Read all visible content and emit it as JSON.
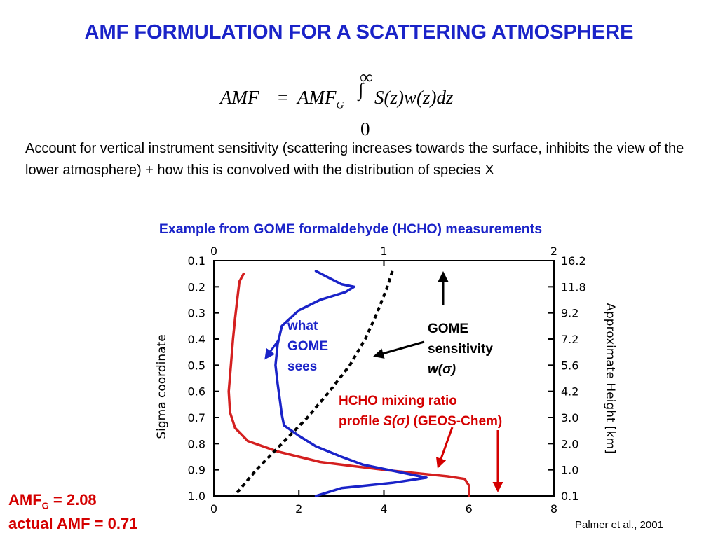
{
  "slide": {
    "title": "AMF FORMULATION FOR A SCATTERING ATMOSPHERE",
    "equation": {
      "lhs": "AMF",
      "equals": "=",
      "amf_g": "AMF",
      "amf_g_subscript": "G",
      "integral_sign": "∫",
      "upper_limit": "∞",
      "lower_limit": "0",
      "integrand": "S(z)w(z)dz"
    },
    "description": "Account for vertical instrument sensitivity (scattering increases towards the surface, inhibits the view of the lower atmosphere) + how this is convolved with the distribution of species X",
    "subtitle": "Example from GOME formaldehyde (HCHO) measurements",
    "result": {
      "amfg_label": "AMF",
      "amfg_subscript": "G",
      "amfg_value": " = 2.08",
      "actual_amf": "actual AMF = 0.71"
    },
    "citation": "Palmer et al., 2001"
  },
  "chart_data": {
    "type": "line",
    "left_axis": {
      "label": "Sigma coordinate",
      "ticks": [
        "0.1",
        "0.2",
        "0.3",
        "0.4",
        "0.5",
        "0.6",
        "0.7",
        "0.8",
        "0.9",
        "1.0"
      ],
      "range": [
        0.1,
        1.0
      ]
    },
    "right_axis": {
      "label": "Approximate Height [km]",
      "ticks": [
        "16.2",
        "11.8",
        "9.2",
        "7.2",
        "5.6",
        "4.2",
        "3.0",
        "2.0",
        "1.0",
        "0.1"
      ]
    },
    "top_axis": {
      "ticks": [
        "0",
        "1",
        "2"
      ],
      "range": [
        0,
        2
      ]
    },
    "bottom_axis": {
      "ticks": [
        "0",
        "2",
        "4",
        "6",
        "8"
      ],
      "range": [
        0,
        8
      ]
    },
    "series": [
      {
        "id": "hcho",
        "axis": "bottom",
        "color": "#d42020",
        "style": "solid",
        "points": [
          [
            0.7,
            0.15
          ],
          [
            0.6,
            0.18
          ],
          [
            0.55,
            0.25
          ],
          [
            0.5,
            0.32
          ],
          [
            0.45,
            0.4
          ],
          [
            0.4,
            0.5
          ],
          [
            0.35,
            0.6
          ],
          [
            0.38,
            0.68
          ],
          [
            0.5,
            0.74
          ],
          [
            0.8,
            0.79
          ],
          [
            1.5,
            0.83
          ],
          [
            2.5,
            0.87
          ],
          [
            4,
            0.9
          ],
          [
            5.5,
            0.925
          ],
          [
            5.9,
            0.935
          ],
          [
            6.0,
            0.96
          ],
          [
            6.0,
            1.0
          ]
        ]
      },
      {
        "id": "gome_sees",
        "axis": "bottom",
        "color": "#1a23c8",
        "style": "solid",
        "points": [
          [
            2.4,
            0.14
          ],
          [
            2.7,
            0.165
          ],
          [
            3.0,
            0.19
          ],
          [
            3.3,
            0.2
          ],
          [
            3.1,
            0.22
          ],
          [
            2.5,
            0.25
          ],
          [
            2.0,
            0.29
          ],
          [
            1.6,
            0.35
          ],
          [
            1.5,
            0.42
          ],
          [
            1.45,
            0.5
          ],
          [
            1.5,
            0.57
          ],
          [
            1.55,
            0.63
          ],
          [
            1.6,
            0.69
          ],
          [
            1.65,
            0.73
          ],
          [
            2.0,
            0.77
          ],
          [
            2.4,
            0.81
          ],
          [
            3.0,
            0.85
          ],
          [
            3.5,
            0.88
          ],
          [
            5.0,
            0.93
          ],
          [
            4.2,
            0.95
          ],
          [
            3.0,
            0.97
          ],
          [
            2.6,
            0.99
          ],
          [
            2.4,
            1.0
          ]
        ]
      },
      {
        "id": "gome_sensitivity",
        "axis": "top",
        "color": "#000000",
        "style": "dashed",
        "points": [
          [
            1.05,
            0.14
          ],
          [
            1.02,
            0.2
          ],
          [
            0.96,
            0.3
          ],
          [
            0.89,
            0.4
          ],
          [
            0.8,
            0.5
          ],
          [
            0.68,
            0.6
          ],
          [
            0.55,
            0.7
          ],
          [
            0.4,
            0.8
          ],
          [
            0.25,
            0.9
          ],
          [
            0.12,
            1.0
          ]
        ]
      }
    ],
    "annotations": {
      "what_gome_sees": [
        "what",
        "GOME",
        "sees"
      ],
      "gome_sensitivity": [
        "GOME",
        "sensitivity"
      ],
      "w_sigma": "w(σ)",
      "hcho_label_line1": "HCHO mixing ratio",
      "hcho_label_line2_prefix": "profile ",
      "hcho_label_line2_sym": "S(σ)",
      "hcho_label_line2_suffix": " (GEOS-Chem)",
      "colors": {
        "blue": "#1a23c8",
        "red": "#d40000",
        "black": "#000000"
      }
    }
  }
}
